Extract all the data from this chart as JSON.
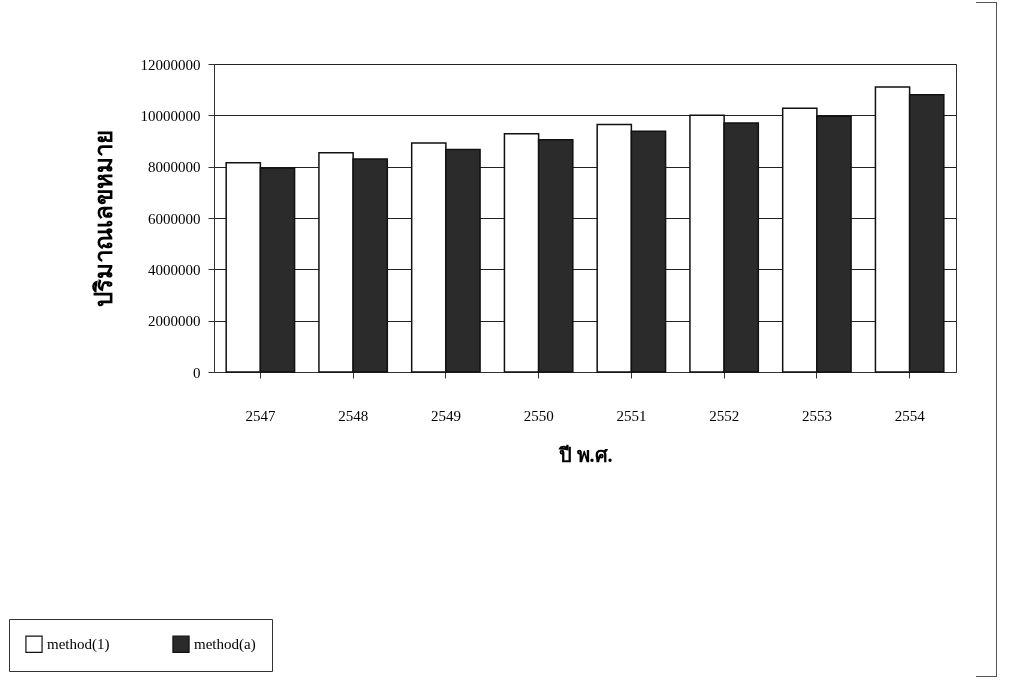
{
  "chart_data": {
    "type": "bar",
    "xlabel": "ปี พ.ศ.",
    "ylabel": "ปริมาณเลขหมาย",
    "categories": [
      "2547",
      "2548",
      "2549",
      "2550",
      "2551",
      "2552",
      "2553",
      "2554"
    ],
    "series": [
      {
        "name": "method(1)",
        "color": "#ffffff",
        "values": [
          8150000,
          8540000,
          8920000,
          9280000,
          9640000,
          10000000,
          10280000,
          11100000
        ]
      },
      {
        "name": "method(a)",
        "color": "#2b2b2b",
        "values": [
          7950000,
          8300000,
          8670000,
          9050000,
          9380000,
          9700000,
          9960000,
          10800000
        ]
      }
    ],
    "ylim": [
      0,
      12000000
    ],
    "yticks": [
      0,
      2000000,
      4000000,
      6000000,
      8000000,
      10000000,
      12000000
    ],
    "grid": "y",
    "legend": "bottom left"
  }
}
